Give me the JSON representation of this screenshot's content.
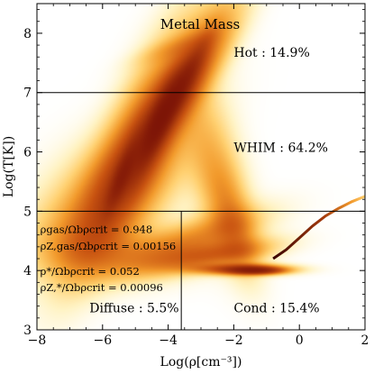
{
  "chart_data": {
    "type": "heatmap",
    "title": "Metal Mass",
    "xlabel": "Log(ρ[cm⁻³])",
    "ylabel": "Log(T[K])",
    "xlim": [
      -8,
      2
    ],
    "ylim": [
      3,
      8.5
    ],
    "xticks": [
      -8,
      -6,
      -4,
      -2,
      0,
      2
    ],
    "yticks": [
      3,
      4,
      5,
      6,
      7,
      8
    ],
    "xtick_labels": [
      "−8",
      "−6",
      "−4",
      "−2",
      "0",
      "2"
    ],
    "ytick_labels": [
      "3",
      "4",
      "5",
      "6",
      "7",
      "8"
    ],
    "colormap": [
      "#ffffff",
      "#fff3c4",
      "#ffd070",
      "#f29a2c",
      "#c95411",
      "#7a1206"
    ],
    "phase_boundaries": {
      "hot_T": 7.0,
      "whim_lower_T": 5.0,
      "diffuse_rho": -3.6
    },
    "phase_labels": [
      {
        "name": "Hot",
        "value": "14.9%",
        "text": "Hot : 14.9%",
        "x": -2.0,
        "y": 7.6
      },
      {
        "name": "WHIM",
        "value": "64.2%",
        "text": "WHIM : 64.2%",
        "x": -2.0,
        "y": 6.0
      },
      {
        "name": "Diffuse",
        "value": "5.5%",
        "text": "Diffuse : 5.5%",
        "x": -6.4,
        "y": 3.3
      },
      {
        "name": "Cond",
        "value": "15.4%",
        "text": "Cond : 15.4%",
        "x": -2.0,
        "y": 3.3
      }
    ],
    "annotations": [
      {
        "label": "ρgas/Ωbρcrit = 0.948",
        "x": -7.9,
        "y": 4.63
      },
      {
        "label": "ρZ,gas/Ωbρcrit = 0.00156",
        "x": -7.9,
        "y": 4.35
      },
      {
        "label": "ρ*/Ωbρcrit = 0.052",
        "x": -7.9,
        "y": 3.93
      },
      {
        "label": "ρZ,*/Ωbρcrit = 0.00096",
        "x": -7.9,
        "y": 3.65
      }
    ],
    "density_components": [
      {
        "x": -5.0,
        "y": 6.2,
        "sx": 1.7,
        "sy": 0.5,
        "rot": 48,
        "w": 0.55
      },
      {
        "x": -4.0,
        "y": 6.8,
        "sx": 1.4,
        "sy": 0.32,
        "rot": 44,
        "w": 0.55
      },
      {
        "x": -3.3,
        "y": 7.2,
        "sx": 1.3,
        "sy": 0.3,
        "rot": 38,
        "w": 0.45
      },
      {
        "x": -5.0,
        "y": 5.5,
        "sx": 1.5,
        "sy": 0.55,
        "rot": 30,
        "w": 0.35
      },
      {
        "x": -6.2,
        "y": 5.2,
        "sx": 1.3,
        "sy": 0.6,
        "rot": 15,
        "w": 0.25
      },
      {
        "x": -4.3,
        "y": 6.5,
        "sx": 0.55,
        "sy": 0.16,
        "rot": 50,
        "w": 0.9
      },
      {
        "x": -3.7,
        "y": 7.0,
        "sx": 0.7,
        "sy": 0.14,
        "rot": 44,
        "w": 0.8
      },
      {
        "x": -5.4,
        "y": 5.6,
        "sx": 0.45,
        "sy": 0.13,
        "rot": 52,
        "w": 0.7
      },
      {
        "x": -2.5,
        "y": 5.6,
        "sx": 0.9,
        "sy": 0.5,
        "rot": -60,
        "w": 0.3
      },
      {
        "x": -2.0,
        "y": 4.8,
        "sx": 0.7,
        "sy": 0.35,
        "rot": -55,
        "w": 0.3
      },
      {
        "x": -3.3,
        "y": 4.5,
        "sx": 1.4,
        "sy": 0.22,
        "rot": 10,
        "w": 0.45
      },
      {
        "x": -2.6,
        "y": 4.25,
        "sx": 1.2,
        "sy": 0.14,
        "rot": 5,
        "w": 0.55
      },
      {
        "x": -1.7,
        "y": 4.02,
        "sx": 0.9,
        "sy": 0.06,
        "rot": 0,
        "w": 0.95
      },
      {
        "x": -1.3,
        "y": 4.0,
        "sx": 0.5,
        "sy": 0.04,
        "rot": 0,
        "w": 1.0
      },
      {
        "x": -5.6,
        "y": 4.25,
        "sx": 1.5,
        "sy": 0.3,
        "rot": 0,
        "w": 0.28
      },
      {
        "x": -7.0,
        "y": 4.6,
        "sx": 1.0,
        "sy": 0.4,
        "rot": 0,
        "w": 0.12
      },
      {
        "x": -3.8,
        "y": 7.75,
        "sx": 0.8,
        "sy": 0.12,
        "rot": 10,
        "w": 0.15
      }
    ],
    "condensed_track": [
      {
        "x": -0.8,
        "y": 4.2
      },
      {
        "x": -0.4,
        "y": 4.35
      },
      {
        "x": 0.0,
        "y": 4.55
      },
      {
        "x": 0.4,
        "y": 4.75
      },
      {
        "x": 0.8,
        "y": 4.92
      },
      {
        "x": 1.2,
        "y": 5.05
      },
      {
        "x": 1.6,
        "y": 5.16
      },
      {
        "x": 2.0,
        "y": 5.25
      }
    ]
  }
}
